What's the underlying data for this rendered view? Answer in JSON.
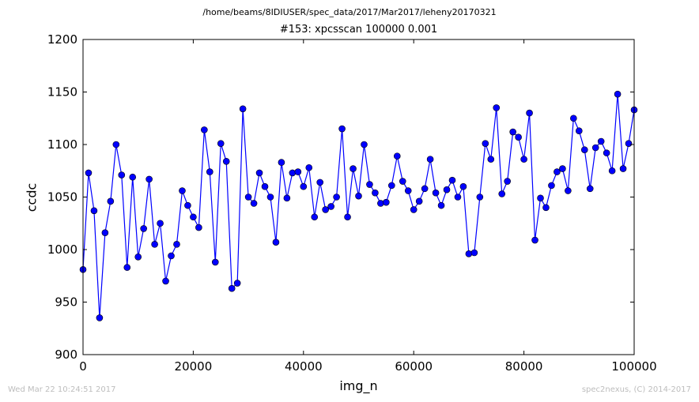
{
  "figure": {
    "suptitle": "/home/beams/8IDIUSER/spec_data/2017/Mar2017/leheny20170321",
    "timestamp": "Wed Mar 22 10:24:51 2017",
    "credit": "spec2nexus, (C) 2014-2017"
  },
  "chart_data": {
    "type": "line",
    "title": "#153: xpcsscan 100000 0.001",
    "xlabel": "img_n",
    "ylabel": "ccdc",
    "xlim": [
      0,
      100000
    ],
    "ylim": [
      900,
      1200
    ],
    "xticks": [
      0,
      20000,
      40000,
      60000,
      80000,
      100000
    ],
    "yticks": [
      900,
      950,
      1000,
      1050,
      1100,
      1150,
      1200
    ],
    "grid": false,
    "colors": {
      "line": "#0000ff",
      "marker": "#0000ff",
      "marker_edge": "#000000"
    },
    "series": [
      {
        "marker": "circle",
        "x": [
          0,
          1000,
          2000,
          3000,
          4000,
          5000,
          6000,
          7000,
          8000,
          9000,
          10000,
          11000,
          12000,
          13000,
          14000,
          15000,
          16000,
          17000,
          18000,
          19000,
          20000,
          21000,
          22000,
          23000,
          24000,
          25000,
          26000,
          27000,
          28000,
          29000,
          30000,
          31000,
          32000,
          33000,
          34000,
          35000,
          36000,
          37000,
          38000,
          39000,
          40000,
          41000,
          42000,
          43000,
          44000,
          45000,
          46000,
          47000,
          48000,
          49000,
          50000,
          51000,
          52000,
          53000,
          54000,
          55000,
          56000,
          57000,
          58000,
          59000,
          60000,
          61000,
          62000,
          63000,
          64000,
          65000,
          66000,
          67000,
          68000,
          69000,
          70000,
          71000,
          72000,
          73000,
          74000,
          75000,
          76000,
          77000,
          78000,
          79000,
          80000,
          81000,
          82000,
          83000,
          84000,
          85000,
          86000,
          87000,
          88000,
          89000,
          90000,
          91000,
          92000,
          93000,
          94000,
          95000,
          96000,
          97000,
          98000,
          99000,
          100000
        ],
        "y": [
          981,
          1073,
          1037,
          935,
          1016,
          1046,
          1100,
          1071,
          983,
          1069,
          993,
          1020,
          1067,
          1005,
          1025,
          970,
          994,
          1005,
          1056,
          1042,
          1031,
          1021,
          1114,
          1074,
          988,
          1101,
          1084,
          963,
          968,
          1134,
          1050,
          1044,
          1073,
          1060,
          1050,
          1007,
          1083,
          1049,
          1073,
          1074,
          1060,
          1078,
          1031,
          1064,
          1038,
          1041,
          1050,
          1115,
          1031,
          1077,
          1051,
          1100,
          1062,
          1054,
          1044,
          1045,
          1061,
          1089,
          1065,
          1056,
          1038,
          1046,
          1058,
          1086,
          1054,
          1042,
          1057,
          1066,
          1050,
          1060,
          996,
          997,
          1050,
          1101,
          1086,
          1135,
          1053,
          1065,
          1112,
          1107,
          1086,
          1130,
          1009,
          1049,
          1040,
          1061,
          1074,
          1077,
          1056,
          1125,
          1113,
          1095,
          1058,
          1097,
          1103,
          1092,
          1075,
          1148,
          1077,
          1101,
          1133
        ]
      }
    ]
  }
}
